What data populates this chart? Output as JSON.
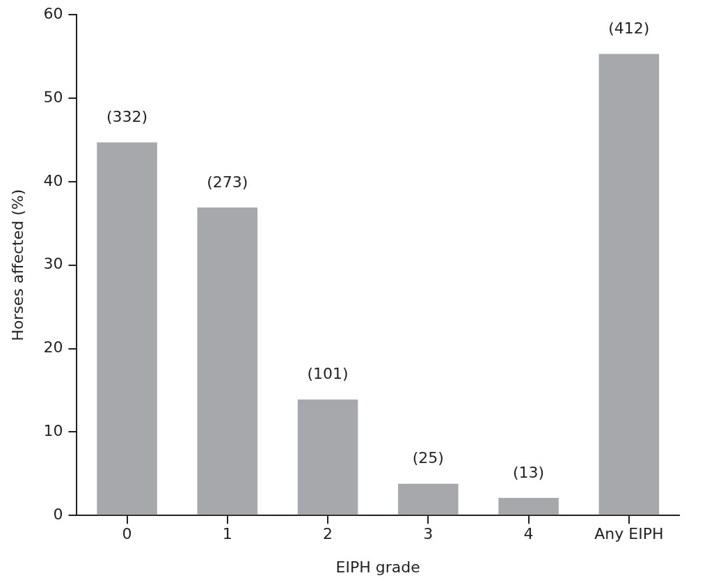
{
  "chart_data": {
    "type": "bar",
    "xlabel": "EIPH grade",
    "ylabel": "Horses affected (%)",
    "categories": [
      "0",
      "1",
      "2",
      "3",
      "4",
      "Any EIPH"
    ],
    "values": [
      44.7,
      36.9,
      13.9,
      3.8,
      2.1,
      55.3
    ],
    "annotations": [
      {
        "text": "(332)",
        "x": "0",
        "y": 44.7
      },
      {
        "text": "(273)",
        "x": "1",
        "y": 36.9
      },
      {
        "text": "(101)",
        "x": "2",
        "y": 13.9
      },
      {
        "text": "(25)",
        "x": "3",
        "y": 3.8
      },
      {
        "text": "(13)",
        "x": "4",
        "y": 2.1
      },
      {
        "text": "(412)",
        "x": "Any EIPH",
        "y": 55.3
      }
    ],
    "color": "#a7a8ab",
    "ylim": [
      0,
      60
    ],
    "yticks": [
      0,
      10,
      20,
      30,
      40,
      50,
      60
    ],
    "grid": false,
    "legend": false
  }
}
